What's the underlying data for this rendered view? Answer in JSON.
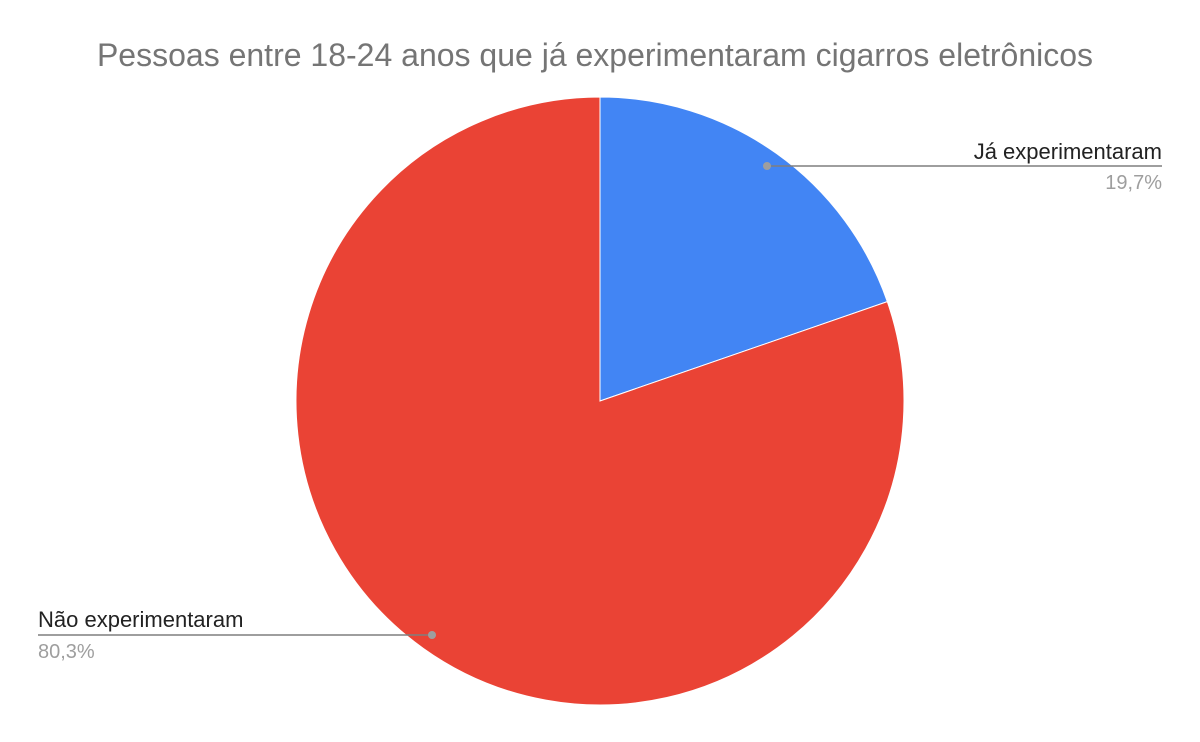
{
  "chart_data": {
    "type": "pie",
    "title": "Pessoas entre 18-24 anos que já experimentaram cigarros eletrônicos",
    "slices": [
      {
        "label": "Já experimentaram",
        "value": 19.7,
        "value_label": "19,7%",
        "color": "#4285f4"
      },
      {
        "label": "Não experimentaram",
        "value": 80.3,
        "value_label": "80,3%",
        "color": "#ea4335"
      }
    ],
    "legend": "none",
    "start": "top",
    "direction": "clockwise"
  }
}
